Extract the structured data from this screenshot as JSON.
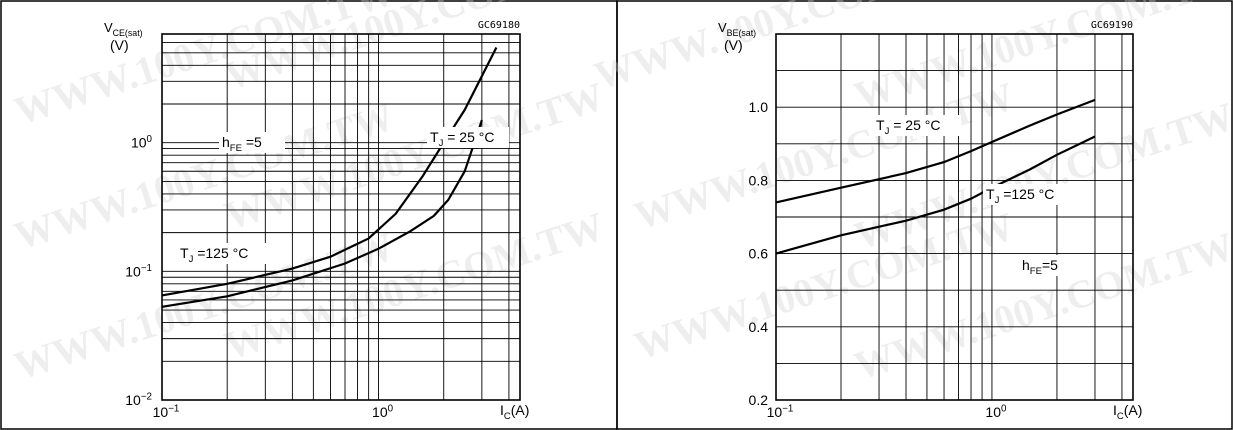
{
  "watermark": "WWW.100Y.COM.TW",
  "chart_data": [
    {
      "type": "line",
      "code": "GC69180",
      "ylabel_main": "V",
      "ylabel_sub": "CE(sat)",
      "yunit": "(V)",
      "xlabel_main": "I",
      "xlabel_sub": "C",
      "xunit": "(A)",
      "xscale": "log",
      "yscale": "log",
      "xlim": [
        0.1,
        4.5
      ],
      "ylim": [
        0.01,
        7
      ],
      "xticks": [
        {
          "base": "10",
          "exp": "−1",
          "value": 0.1
        },
        {
          "base": "10",
          "exp": "0",
          "value": 1
        }
      ],
      "yticks": [
        {
          "base": "10",
          "exp": "−2",
          "value": 0.01
        },
        {
          "base": "10",
          "exp": "−1",
          "value": 0.1
        },
        {
          "base": "10",
          "exp": "0",
          "value": 1
        }
      ],
      "annotations": [
        {
          "main": "h",
          "sub": "FE",
          "rest": " =5"
        },
        {
          "main": "T",
          "sub": "J",
          "rest": " = 25 °C"
        },
        {
          "main": "T",
          "sub": "J",
          "rest": " =125 °C"
        }
      ],
      "series": [
        {
          "x": [
            0.1,
            0.2,
            0.4,
            0.7,
            1.0,
            1.4,
            1.8,
            2.1,
            2.5,
            3.0
          ],
          "y": [
            0.053,
            0.064,
            0.085,
            0.115,
            0.15,
            0.205,
            0.27,
            0.36,
            0.6,
            1.5
          ]
        },
        {
          "x": [
            0.1,
            0.2,
            0.4,
            0.6,
            0.9,
            1.2,
            1.6,
            2.0,
            2.5,
            3.5
          ],
          "y": [
            0.065,
            0.08,
            0.105,
            0.13,
            0.18,
            0.28,
            0.55,
            1.0,
            1.8,
            5.5
          ]
        }
      ]
    },
    {
      "type": "line",
      "code": "GC69190",
      "ylabel_main": "V",
      "ylabel_sub": "BE(sat)",
      "yunit": "(V)",
      "xlabel_main": "I",
      "xlabel_sub": "C",
      "xunit": "(A)",
      "xscale": "log",
      "yscale": "linear",
      "xlim": [
        0.1,
        4.5
      ],
      "ylim": [
        0.2,
        1.2
      ],
      "xticks": [
        {
          "base": "10",
          "exp": "−1",
          "value": 0.1
        },
        {
          "base": "10",
          "exp": "0",
          "value": 1
        }
      ],
      "yticks": [
        {
          "label": "0.2",
          "value": 0.2
        },
        {
          "label": "0.4",
          "value": 0.4
        },
        {
          "label": "0.6",
          "value": 0.6
        },
        {
          "label": "0.8",
          "value": 0.8
        },
        {
          "label": "1.0",
          "value": 1.0
        }
      ],
      "annotations": [
        {
          "main": "T",
          "sub": "J",
          "rest": " = 25 °C"
        },
        {
          "main": "T",
          "sub": "J",
          "rest": " =125 °C"
        },
        {
          "main": "h",
          "sub": "FE",
          "rest": "=5"
        }
      ],
      "series": [
        {
          "x": [
            0.1,
            0.2,
            0.4,
            0.6,
            0.8,
            1.0,
            1.5,
            2.0,
            3.0
          ],
          "y": [
            0.74,
            0.78,
            0.82,
            0.85,
            0.88,
            0.905,
            0.95,
            0.98,
            1.02
          ]
        },
        {
          "x": [
            0.1,
            0.2,
            0.4,
            0.6,
            0.8,
            1.0,
            1.5,
            2.0,
            3.0
          ],
          "y": [
            0.6,
            0.65,
            0.69,
            0.72,
            0.75,
            0.78,
            0.83,
            0.87,
            0.92
          ]
        }
      ]
    }
  ]
}
